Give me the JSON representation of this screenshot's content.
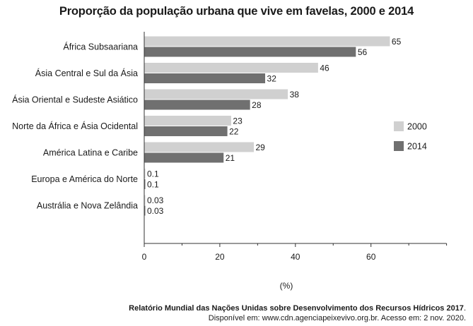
{
  "chart_data": {
    "type": "bar",
    "orientation": "horizontal",
    "title": "Proporção da população urbana que vive em favelas, 2000 e 2014",
    "xlabel": "(%)",
    "ylabel": "",
    "xlim": [
      0,
      80
    ],
    "xticks": [
      0,
      20,
      40,
      60
    ],
    "grid": false,
    "legend": "right",
    "categories": [
      "África Subsaariana",
      "Ásia Central e Sul da Ásia",
      "Ásia Oriental e Sudeste Asiático",
      "Norte da África e Ásia Ocidental",
      "América Latina e Caribe",
      "Europa e América do Norte",
      "Austrália e Nova Zelândia"
    ],
    "series": [
      {
        "name": "2000",
        "color": "#d0d0d0",
        "values": [
          65,
          46,
          38,
          23,
          29,
          0.1,
          0.03
        ],
        "labels": [
          "65",
          "46",
          "38",
          "23",
          "29",
          "0.1",
          "0.03"
        ]
      },
      {
        "name": "2014",
        "color": "#707070",
        "values": [
          56,
          32,
          28,
          22,
          21,
          0.1,
          0.03
        ],
        "labels": [
          "56",
          "32",
          "28",
          "22",
          "21",
          "0.1",
          "0.03"
        ]
      }
    ]
  },
  "source": {
    "line1": "Relatório Mundial das Nações Unidas sobre Desenvolvimento dos Recursos Hídricos 2017",
    "line1_end": ".",
    "line2": "Disponível em: www.cdn.agenciapeixevivo.org.br. Acesso em: 2 nov. 2020."
  }
}
